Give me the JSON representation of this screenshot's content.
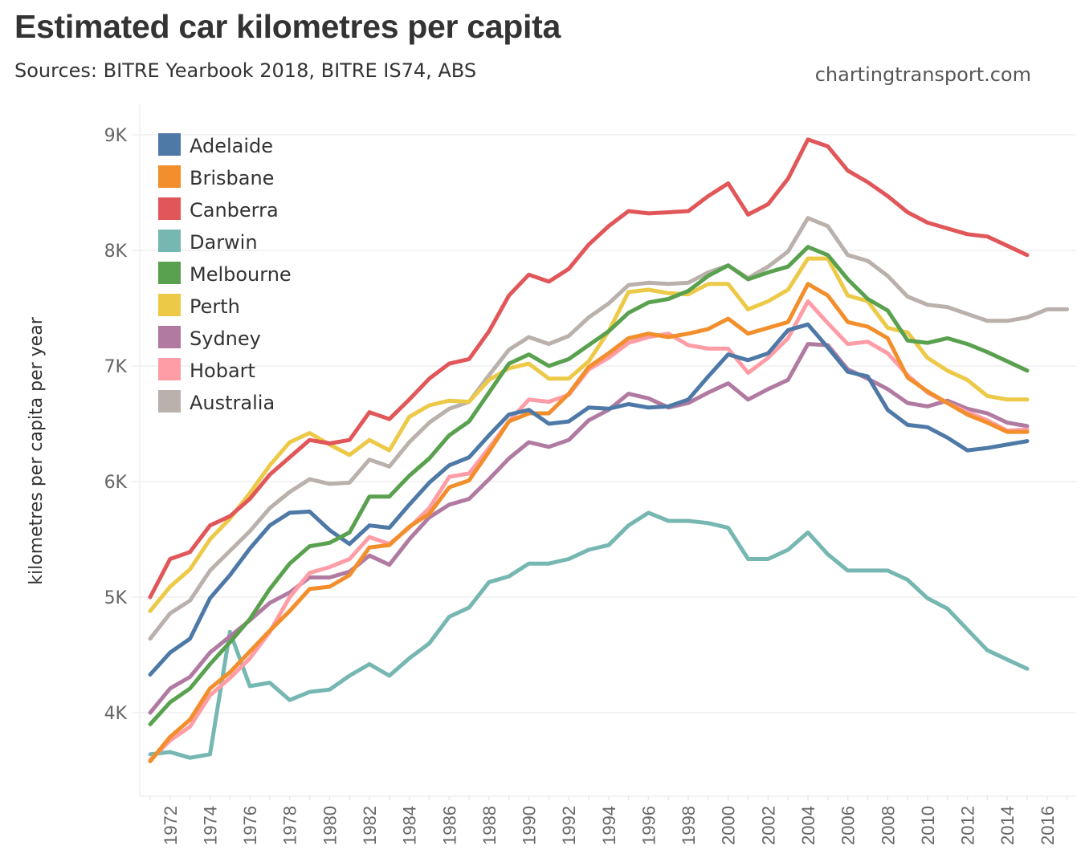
{
  "header": {
    "title": "Estimated car kilometres per capita",
    "subtitle": "Sources: BITRE Yearbook 2018, BITRE IS74, ABS",
    "credit": "chartingtransport.com"
  },
  "chart_data": {
    "type": "line",
    "title": "Estimated car kilometres per capita",
    "subtitle": "Sources: BITRE Yearbook 2018, BITRE IS74, ABS",
    "xlabel": "",
    "ylabel": "kilometres per capita per year",
    "xlim": [
      1970.5,
      2017.5
    ],
    "ylim": [
      3300,
      9200
    ],
    "x_ticks": [
      1972,
      1974,
      1976,
      1978,
      1980,
      1982,
      1984,
      1986,
      1988,
      1990,
      1992,
      1994,
      1996,
      1998,
      2000,
      2002,
      2004,
      2006,
      2008,
      2010,
      2012,
      2014,
      2016
    ],
    "y_ticks": [
      4000,
      5000,
      6000,
      7000,
      8000,
      9000
    ],
    "y_tick_labels": [
      "4K",
      "5K",
      "6K",
      "7K",
      "8K",
      "9K"
    ],
    "grid": true,
    "legend_position": "top-left",
    "x": [
      1971,
      1972,
      1973,
      1974,
      1975,
      1976,
      1977,
      1978,
      1979,
      1980,
      1981,
      1982,
      1983,
      1984,
      1985,
      1986,
      1987,
      1988,
      1989,
      1990,
      1991,
      1992,
      1993,
      1994,
      1995,
      1996,
      1997,
      1998,
      1999,
      2000,
      2001,
      2002,
      2003,
      2004,
      2005,
      2006,
      2007,
      2008,
      2009,
      2010,
      2011,
      2012,
      2013,
      2014,
      2015,
      2016,
      2017
    ],
    "series": [
      {
        "name": "Adelaide",
        "color": "#4e79a7",
        "values": [
          4330,
          4520,
          4640,
          4990,
          5190,
          5420,
          5620,
          5730,
          5740,
          5580,
          5460,
          5620,
          5600,
          5800,
          5990,
          6140,
          6210,
          6400,
          6580,
          6620,
          6500,
          6520,
          6640,
          6630,
          6670,
          6640,
          6650,
          6710,
          6910,
          7100,
          7050,
          7110,
          7310,
          7360,
          7160,
          6950,
          6910,
          6620,
          6490,
          6470,
          6380,
          6270,
          6290,
          6320,
          6350,
          null,
          null
        ]
      },
      {
        "name": "Brisbane",
        "color": "#f28e2b",
        "values": [
          3580,
          3790,
          3940,
          4210,
          4350,
          4530,
          4710,
          4880,
          5070,
          5090,
          5190,
          5430,
          5450,
          5610,
          5720,
          5950,
          6010,
          6260,
          6520,
          6590,
          6590,
          6760,
          6990,
          7110,
          7240,
          7280,
          7250,
          7280,
          7320,
          7410,
          7280,
          7330,
          7380,
          7710,
          7610,
          7380,
          7340,
          7240,
          6900,
          6780,
          6680,
          6580,
          6510,
          6430,
          6430,
          null,
          null
        ]
      },
      {
        "name": "Canberra",
        "color": "#e15759",
        "values": [
          5000,
          5330,
          5390,
          5620,
          5700,
          5850,
          6060,
          6210,
          6360,
          6330,
          6360,
          6600,
          6540,
          6710,
          6890,
          7020,
          7060,
          7300,
          7610,
          7790,
          7730,
          7840,
          8050,
          8210,
          8340,
          8320,
          8330,
          8340,
          8470,
          8580,
          8310,
          8400,
          8620,
          8960,
          8900,
          8690,
          8590,
          8470,
          8330,
          8240,
          8190,
          8140,
          8120,
          8040,
          7960,
          null,
          null
        ]
      },
      {
        "name": "Darwin",
        "color": "#76b7b2",
        "values": [
          3640,
          3660,
          3610,
          3640,
          4700,
          4230,
          4260,
          4110,
          4180,
          4200,
          4320,
          4420,
          4320,
          4470,
          4600,
          4830,
          4910,
          5130,
          5180,
          5290,
          5290,
          5330,
          5410,
          5450,
          5620,
          5730,
          5660,
          5660,
          5640,
          5600,
          5330,
          5330,
          5410,
          5560,
          5370,
          5230,
          5230,
          5230,
          5150,
          4990,
          4900,
          4720,
          4540,
          4460,
          4380,
          null,
          null
        ]
      },
      {
        "name": "Melbourne",
        "color": "#59a14f",
        "values": [
          3900,
          4090,
          4210,
          4420,
          4610,
          4810,
          5070,
          5290,
          5440,
          5470,
          5560,
          5870,
          5870,
          6050,
          6200,
          6400,
          6520,
          6770,
          7020,
          7100,
          7000,
          7060,
          7180,
          7300,
          7460,
          7550,
          7580,
          7650,
          7780,
          7870,
          7750,
          7810,
          7860,
          8030,
          7960,
          7750,
          7580,
          7480,
          7220,
          7200,
          7240,
          7190,
          7120,
          7040,
          6960,
          null,
          null
        ]
      },
      {
        "name": "Perth",
        "color": "#edc948",
        "values": [
          4880,
          5090,
          5240,
          5500,
          5680,
          5900,
          6140,
          6340,
          6420,
          6320,
          6230,
          6360,
          6270,
          6560,
          6660,
          6700,
          6690,
          6880,
          6980,
          7020,
          6890,
          6890,
          7040,
          7300,
          7640,
          7660,
          7630,
          7620,
          7710,
          7710,
          7490,
          7560,
          7660,
          7930,
          7930,
          7610,
          7560,
          7330,
          7290,
          7070,
          6960,
          6880,
          6740,
          6710,
          6710,
          null,
          null
        ]
      },
      {
        "name": "Sydney",
        "color": "#b07aa1",
        "values": [
          4000,
          4210,
          4310,
          4520,
          4660,
          4800,
          4950,
          5040,
          5170,
          5170,
          5220,
          5360,
          5280,
          5500,
          5690,
          5800,
          5850,
          6020,
          6200,
          6340,
          6300,
          6360,
          6530,
          6620,
          6760,
          6720,
          6640,
          6680,
          6770,
          6850,
          6710,
          6800,
          6880,
          7190,
          7180,
          6970,
          6890,
          6800,
          6680,
          6650,
          6700,
          6630,
          6590,
          6510,
          6480,
          null,
          null
        ]
      },
      {
        "name": "Hobart",
        "color": "#ff9da7",
        "values": [
          3590,
          3760,
          3880,
          4150,
          4300,
          4470,
          4700,
          5000,
          5210,
          5260,
          5330,
          5520,
          5460,
          5600,
          5770,
          6040,
          6070,
          6290,
          6520,
          6710,
          6690,
          6750,
          6970,
          7070,
          7200,
          7250,
          7280,
          7180,
          7150,
          7150,
          6940,
          7070,
          7240,
          7560,
          7370,
          7190,
          7210,
          7110,
          6920,
          6770,
          6680,
          6600,
          6530,
          6440,
          6450,
          null,
          null
        ]
      },
      {
        "name": "Australia",
        "color": "#bab0ac",
        "values": [
          4640,
          4860,
          4970,
          5230,
          5400,
          5570,
          5770,
          5910,
          6020,
          5980,
          5990,
          6190,
          6130,
          6340,
          6510,
          6630,
          6690,
          6920,
          7140,
          7250,
          7190,
          7260,
          7420,
          7540,
          7700,
          7720,
          7710,
          7720,
          7810,
          7870,
          7760,
          7860,
          7990,
          8280,
          8210,
          7960,
          7910,
          7780,
          7600,
          7530,
          7510,
          7450,
          7390,
          7390,
          7420,
          7490,
          7490
        ]
      }
    ]
  }
}
